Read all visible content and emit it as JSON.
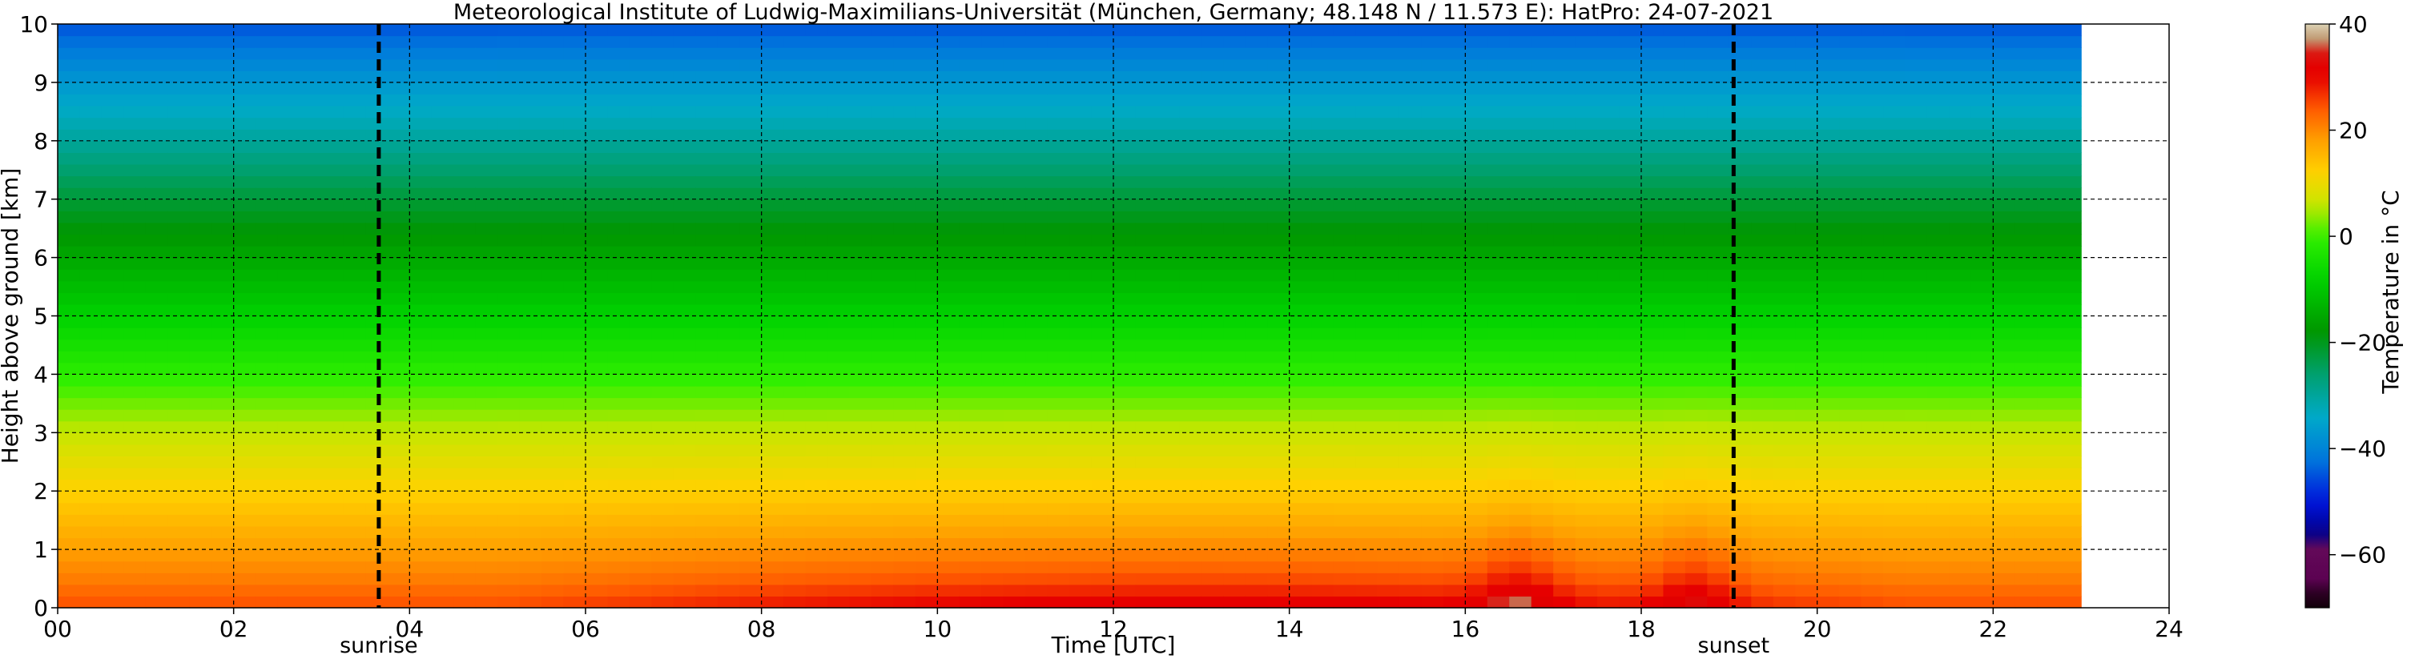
{
  "chart_data": {
    "type": "heatmap",
    "title": "Meteorological Institute of Ludwig-Maximilians-Universität (München, Germany; 48.148 N / 11.573 E):     HatPro: 24-07-2021",
    "xlabel": "Time [UTC]",
    "ylabel": "Height above ground [km]",
    "colorbar_label": "Temperature in °C",
    "xlim": [
      0,
      24
    ],
    "ylim": [
      0,
      10
    ],
    "x_ticks": [
      0,
      2,
      4,
      6,
      8,
      10,
      12,
      14,
      16,
      18,
      20,
      22,
      24
    ],
    "x_tick_labels": [
      "00",
      "02",
      "04",
      "06",
      "08",
      "10",
      "12",
      "14",
      "16",
      "18",
      "20",
      "22",
      "24"
    ],
    "y_ticks": [
      0,
      1,
      2,
      3,
      4,
      5,
      6,
      7,
      8,
      9,
      10
    ],
    "y_tick_labels": [
      "0",
      "1",
      "2",
      "3",
      "4",
      "5",
      "6",
      "7",
      "8",
      "9",
      "10"
    ],
    "grid": true,
    "data_extent_hours": [
      0,
      23
    ],
    "colorbar": {
      "range": [
        -70,
        40
      ],
      "ticks": [
        40,
        20,
        0,
        -20,
        -40,
        -60
      ],
      "tick_labels": [
        "40",
        "20",
        "0",
        "−20",
        "−40",
        "−60"
      ]
    },
    "temperature_profile": {
      "heights_km": [
        0,
        0.5,
        1,
        2,
        3,
        4,
        5,
        6,
        7,
        8,
        9,
        10
      ],
      "temps_c": [
        25,
        21,
        18,
        12,
        6,
        -1,
        -8,
        -15,
        -22,
        -30,
        -37,
        -45
      ]
    },
    "warm_episodes": [
      {
        "time": 16.6,
        "top_km": 1.5,
        "peak_c": 33
      },
      {
        "time": 18.6,
        "top_km": 1.5,
        "peak_c": 33
      }
    ],
    "annotations": [
      {
        "label": "sunrise",
        "time": 3.65
      },
      {
        "label": "sunset",
        "time": 19.05
      }
    ]
  }
}
